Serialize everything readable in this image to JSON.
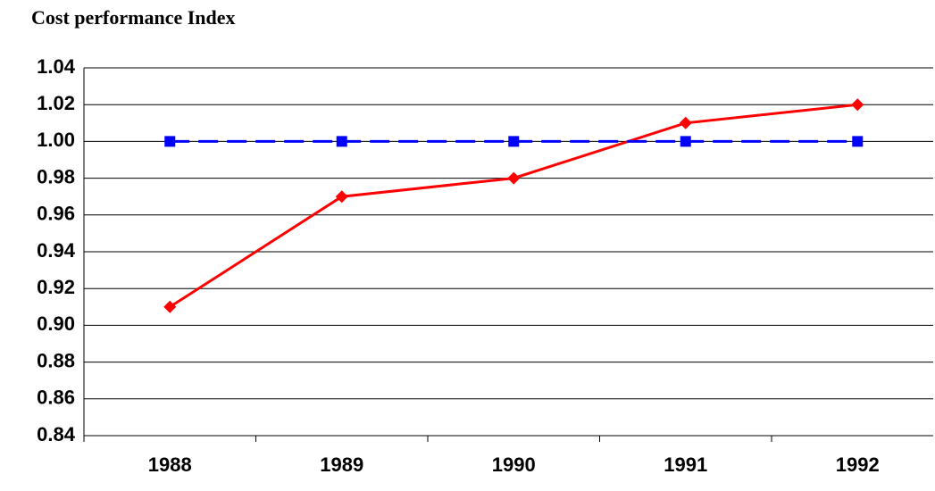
{
  "chart_data": {
    "type": "line",
    "title": "Cost performance Index",
    "categories": [
      "1988",
      "1989",
      "1990",
      "1991",
      "1992"
    ],
    "series": [
      {
        "color": "#ff0000",
        "marker": "diamond",
        "dashed": false,
        "values": [
          0.91,
          0.97,
          0.98,
          1.01,
          1.02
        ]
      },
      {
        "color": "#0000ff",
        "marker": "square",
        "dashed": true,
        "values": [
          1.0,
          1.0,
          1.0,
          1.0,
          1.0
        ]
      }
    ],
    "ylim": [
      0.84,
      1.04
    ],
    "yticks": [
      0.84,
      0.86,
      0.88,
      {
        "value": 0.9,
        "label": "0.90"
      },
      0.92,
      0.94,
      0.96,
      0.98,
      {
        "value": 1.0,
        "label": "1.00"
      },
      1.02,
      1.04
    ],
    "grid": true
  }
}
